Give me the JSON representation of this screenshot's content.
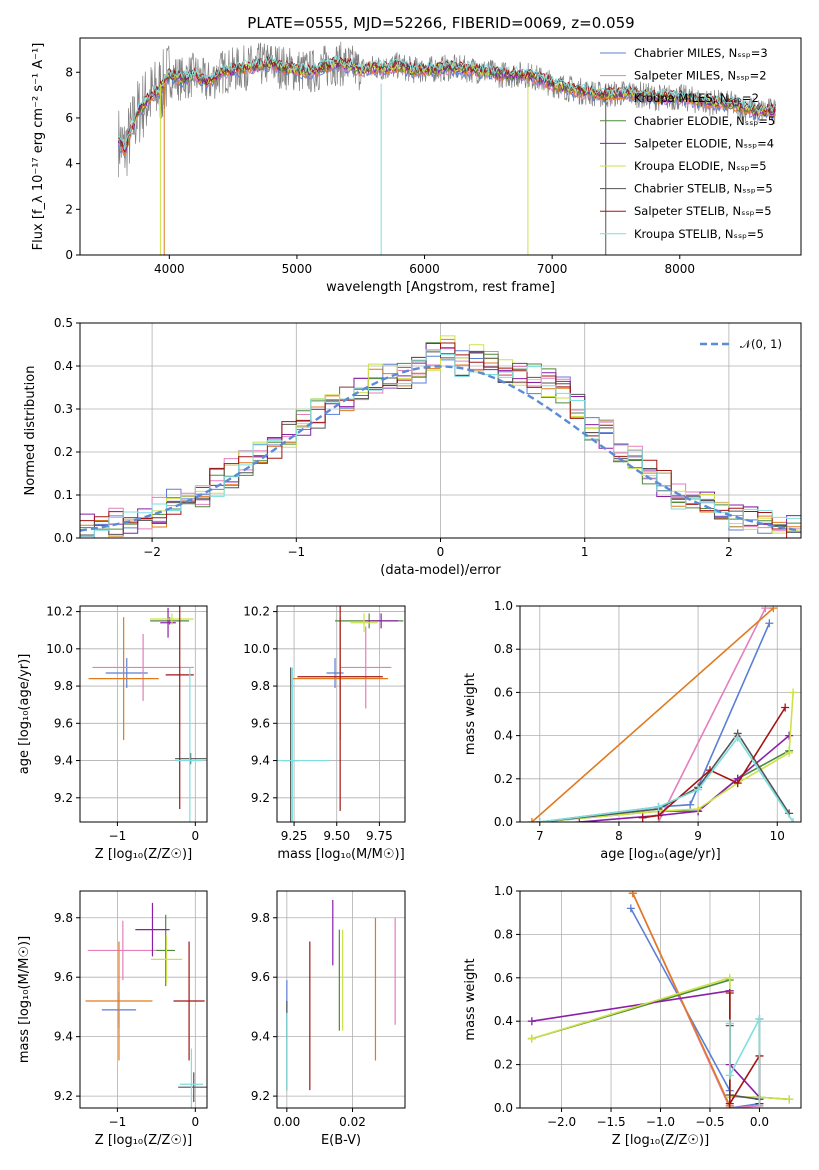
{
  "title": "PLATE=0555, MJD=52266, FIBERID=0069, z=0.059",
  "series_names": [
    "Chabrier MILES, N_SSP=3",
    "Salpeter MILES, N_SSP=2",
    "Kroupa MILES, N_SSP=2",
    "Chabrier ELODIE, N_SSP=5",
    "Salpeter ELODIE, N_SSP=4",
    "Kroupa ELODIE, N_SSP=5",
    "Chabrier STELIB, N_SSP=5",
    "Salpeter STELIB, N_SSP=5",
    "Kroupa STELIB, N_SSP=5"
  ],
  "colors": [
    "#5b7fd6",
    "#e37fbd",
    "#e07a1f",
    "#4f8a3c",
    "#8b1fa8",
    "#cde24a",
    "#555555",
    "#a31515",
    "#7fdede"
  ],
  "chart_data": [
    {
      "type": "line",
      "id": "spectrum",
      "xlabel": "wavelength [Angstrom, rest frame]",
      "ylabel": "Flux [f_λ 10⁻¹⁷ erg cm⁻² s⁻¹ A⁻¹]",
      "xlim": [
        3300,
        8950
      ],
      "ylim": [
        0,
        9.5
      ],
      "xticks": [
        4000,
        5000,
        6000,
        7000,
        8000
      ],
      "yticks": [
        0,
        2,
        4,
        6,
        8
      ],
      "legend_position": "top-right",
      "grid": false,
      "data_points": {
        "x": [
          3600,
          3650,
          3700,
          3750,
          3800,
          3850,
          3900,
          3950,
          4000,
          4100,
          4200,
          4300,
          4400,
          4500,
          4600,
          4700,
          4800,
          4900,
          5000,
          5100,
          5200,
          5300,
          5400,
          5500,
          5600,
          5700,
          5800,
          5900,
          6000,
          6200,
          6400,
          6600,
          6800,
          7000,
          7200,
          7400,
          7600,
          7800,
          8000,
          8200,
          8400,
          8600
        ],
        "y": [
          5.0,
          4.6,
          5.4,
          6.2,
          6.6,
          6.9,
          7.1,
          7.4,
          7.9,
          7.7,
          7.9,
          7.5,
          8.0,
          8.1,
          8.2,
          8.3,
          8.4,
          8.2,
          8.1,
          8.0,
          8.2,
          8.4,
          8.3,
          8.1,
          8.2,
          8.2,
          8.3,
          8.1,
          8.1,
          8.2,
          8.1,
          7.9,
          7.9,
          7.5,
          7.2,
          7.0,
          7.1,
          6.9,
          6.9,
          6.7,
          6.6,
          6.3
        ]
      }
    },
    {
      "type": "line",
      "id": "residuals",
      "xlabel": "(data-model)/error",
      "ylabel": "Normed distribution",
      "xlim": [
        -2.5,
        2.5
      ],
      "ylim": [
        0,
        0.5
      ],
      "xticks": [
        -2,
        -1,
        0,
        1,
        2
      ],
      "yticks": [
        0.0,
        0.1,
        0.2,
        0.3,
        0.4,
        0.5
      ],
      "xtick_labels": [
        "−2",
        "−1",
        "0",
        "1",
        "2"
      ],
      "ytick_labels": [
        "0.0",
        "0.1",
        "0.2",
        "0.3",
        "0.4",
        "0.5"
      ],
      "legend_label": "𝒩(0, 1)",
      "legend_position": "top-right",
      "grid": true,
      "bins": [
        -2.5,
        -2.4,
        -2.3,
        -2.2,
        -2.1,
        -2.0,
        -1.9,
        -1.8,
        -1.7,
        -1.6,
        -1.5,
        -1.4,
        -1.3,
        -1.2,
        -1.1,
        -1.0,
        -0.9,
        -0.8,
        -0.7,
        -0.6,
        -0.5,
        -0.4,
        -0.3,
        -0.2,
        -0.1,
        0.0,
        0.1,
        0.2,
        0.3,
        0.4,
        0.5,
        0.6,
        0.7,
        0.8,
        0.9,
        1.0,
        1.1,
        1.2,
        1.3,
        1.4,
        1.5,
        1.6,
        1.7,
        1.8,
        1.9,
        2.0,
        2.1,
        2.2,
        2.3,
        2.4
      ],
      "base_hist": [
        0.025,
        0.03,
        0.035,
        0.04,
        0.05,
        0.06,
        0.08,
        0.09,
        0.1,
        0.13,
        0.15,
        0.18,
        0.19,
        0.22,
        0.24,
        0.27,
        0.29,
        0.3,
        0.33,
        0.35,
        0.37,
        0.38,
        0.38,
        0.39,
        0.42,
        0.44,
        0.41,
        0.42,
        0.4,
        0.39,
        0.38,
        0.37,
        0.36,
        0.34,
        0.3,
        0.26,
        0.24,
        0.2,
        0.18,
        0.15,
        0.13,
        0.1,
        0.09,
        0.08,
        0.06,
        0.05,
        0.04,
        0.035,
        0.03,
        0.025
      ]
    },
    {
      "type": "scatter",
      "id": "age-vs-Z",
      "xlabel": "Z [log₁₀(Z/Z☉)]",
      "ylabel": "age [log₁₀(age/yr)]",
      "xlim": [
        -1.48,
        0.15
      ],
      "ylim": [
        9.07,
        10.23
      ],
      "xticks": [
        -1,
        0
      ],
      "yticks": [
        9.2,
        9.4,
        9.6,
        9.8,
        10.0,
        10.2
      ],
      "xtick_labels": [
        "−1",
        "0"
      ],
      "ytick_labels": [
        "9.2",
        "9.4",
        "9.6",
        "9.8",
        "10.0",
        "10.2"
      ],
      "points": [
        {
          "x": -0.88,
          "y": 9.87,
          "xerr": 0.27,
          "yerr": 0.08
        },
        {
          "x": -0.67,
          "y": 9.9,
          "xerr": 0.65,
          "yerr": 0.18
        },
        {
          "x": -0.92,
          "y": 9.84,
          "xerr": 0.45,
          "yerr": 0.33
        },
        {
          "x": -0.33,
          "y": 10.15,
          "xerr": 0.25,
          "yerr": 0.02
        },
        {
          "x": -0.35,
          "y": 10.14,
          "xerr": 0.1,
          "yerr": 0.08
        },
        {
          "x": -0.3,
          "y": 10.16,
          "xerr": 0.28,
          "yerr": 0.03
        },
        {
          "x": -0.06,
          "y": 9.41,
          "xerr": 0.2,
          "yerr": 0.03
        },
        {
          "x": -0.2,
          "y": 9.86,
          "xerr": 0.18,
          "yerr": 0.72
        },
        {
          "x": -0.07,
          "y": 9.4,
          "xerr": 0.18,
          "yerr": 0.5
        }
      ]
    },
    {
      "type": "scatter",
      "id": "age-vs-mass",
      "xlabel": "mass [log₁₀(M/M☉)]",
      "ylabel": "",
      "xlim": [
        9.15,
        9.9
      ],
      "ylim": [
        9.07,
        10.23
      ],
      "xticks": [
        9.25,
        9.5,
        9.75
      ],
      "yticks": [
        9.2,
        9.4,
        9.6,
        9.8,
        10.0,
        10.2
      ],
      "xtick_labels": [
        "9.25",
        "9.50",
        "9.75"
      ],
      "ytick_labels": [
        "9.2",
        "9.4",
        "9.6",
        "9.8",
        "10.0",
        "10.2"
      ],
      "points": [
        {
          "x": 9.49,
          "y": 9.87,
          "xerr": 0.05,
          "yerr": 0.08
        },
        {
          "x": 9.67,
          "y": 9.9,
          "xerr": 0.15,
          "yerr": 0.22
        },
        {
          "x": 9.52,
          "y": 9.84,
          "xerr": 0.28,
          "yerr": 0.33
        },
        {
          "x": 9.69,
          "y": 10.15,
          "xerr": 0.2,
          "yerr": 0.04
        },
        {
          "x": 9.76,
          "y": 10.15,
          "xerr": 0.1,
          "yerr": 0.04
        },
        {
          "x": 9.66,
          "y": 10.14,
          "xerr": 0.08,
          "yerr": 0.05
        },
        {
          "x": 9.23,
          "y": 9.4,
          "xerr": 0.05,
          "yerr": 0.5
        },
        {
          "x": 9.52,
          "y": 9.85,
          "xerr": 0.25,
          "yerr": 0.72
        },
        {
          "x": 9.24,
          "y": 9.4,
          "xerr": 0.22,
          "yerr": 0.5
        }
      ]
    },
    {
      "type": "line",
      "id": "massweight-vs-age",
      "xlabel": "age [log₁₀(age/yr)]",
      "ylabel": "mass weight",
      "xlim": [
        6.75,
        10.3
      ],
      "ylim": [
        0,
        1.0
      ],
      "xticks": [
        7,
        8,
        9,
        10
      ],
      "yticks": [
        0.0,
        0.2,
        0.4,
        0.6,
        0.8,
        1.0
      ],
      "xtick_labels": [
        "7",
        "8",
        "9",
        "10"
      ],
      "ytick_labels": [
        "0.0",
        "0.2",
        "0.4",
        "0.6",
        "0.8",
        "1.0"
      ],
      "grid": true,
      "series": [
        {
          "x": [
            7.0,
            8.5,
            8.9,
            9.9
          ],
          "y": [
            0.0,
            0.07,
            0.08,
            0.92
          ]
        },
        {
          "x": [
            8.5,
            9.85
          ],
          "y": [
            0.0,
            0.99
          ]
        },
        {
          "x": [
            6.9,
            9.95
          ],
          "y": [
            0.0,
            0.99
          ]
        },
        {
          "x": [
            7.0,
            8.5,
            9.0,
            9.5,
            10.15
          ],
          "y": [
            0.0,
            0.05,
            0.05,
            0.2,
            0.33
          ]
        },
        {
          "x": [
            7.5,
            8.5,
            9.0,
            9.5,
            10.15
          ],
          "y": [
            0.0,
            0.03,
            0.05,
            0.2,
            0.4
          ]
        },
        {
          "x": [
            7.0,
            8.5,
            9.0,
            9.5,
            10.15,
            10.2
          ],
          "y": [
            0.0,
            0.05,
            0.06,
            0.18,
            0.32,
            0.6
          ]
        },
        {
          "x": [
            7.0,
            8.5,
            9.0,
            9.5,
            10.15
          ],
          "y": [
            0.0,
            0.06,
            0.16,
            0.41,
            0.04
          ]
        },
        {
          "x": [
            8.3,
            8.5,
            9.15,
            9.5,
            10.1
          ],
          "y": [
            0.02,
            0.03,
            0.24,
            0.18,
            0.53
          ]
        },
        {
          "x": [
            7.0,
            8.5,
            9.0,
            9.5,
            10.2
          ],
          "y": [
            0.0,
            0.07,
            0.15,
            0.39,
            0.0
          ]
        }
      ]
    },
    {
      "type": "scatter",
      "id": "mass-vs-Z",
      "xlabel": "Z [log₁₀(Z/Z☉)]",
      "ylabel": "mass [log₁₀(M/M☉)]",
      "xlim": [
        -1.48,
        0.15
      ],
      "ylim": [
        9.16,
        9.89
      ],
      "xticks": [
        -1,
        0
      ],
      "yticks": [
        9.2,
        9.4,
        9.6,
        9.8
      ],
      "xtick_labels": [
        "−1",
        "0"
      ],
      "ytick_labels": [
        "9.2",
        "9.4",
        "9.6",
        "9.8"
      ],
      "points": [
        {
          "x": -0.98,
          "y": 9.49,
          "xerr": 0.22,
          "yerr": 0.06
        },
        {
          "x": -0.93,
          "y": 9.69,
          "xerr": 0.45,
          "yerr": 0.1
        },
        {
          "x": -0.98,
          "y": 9.52,
          "xerr": 0.43,
          "yerr": 0.2
        },
        {
          "x": -0.38,
          "y": 9.69,
          "xerr": 0.12,
          "yerr": 0.12
        },
        {
          "x": -0.55,
          "y": 9.76,
          "xerr": 0.22,
          "yerr": 0.09
        },
        {
          "x": -0.37,
          "y": 9.66,
          "xerr": 0.2,
          "yerr": 0.08
        },
        {
          "x": -0.02,
          "y": 9.23,
          "xerr": 0.2,
          "yerr": 0.05
        },
        {
          "x": -0.08,
          "y": 9.52,
          "xerr": 0.2,
          "yerr": 0.2
        },
        {
          "x": -0.05,
          "y": 9.24,
          "xerr": 0.15,
          "yerr": 0.12
        }
      ]
    },
    {
      "type": "scatter",
      "id": "mass-vs-EBV",
      "xlabel": "E(B-V)",
      "ylabel": "",
      "xlim": [
        -0.003,
        0.036
      ],
      "ylim": [
        9.16,
        9.89
      ],
      "xticks": [
        0.0,
        0.02
      ],
      "yticks": [
        9.2,
        9.4,
        9.6,
        9.8
      ],
      "xtick_labels": [
        "0.00",
        "0.02"
      ],
      "ytick_labels": [
        "9.2",
        "9.4",
        "9.6",
        "9.8"
      ],
      "points": [
        {
          "x": 0.0,
          "y": 9.49,
          "xerr": 0,
          "yerr": 0.1
        },
        {
          "x": 0.033,
          "y": 9.62,
          "xerr": 0,
          "yerr": 0.18
        },
        {
          "x": 0.027,
          "y": 9.56,
          "xerr": 0,
          "yerr": 0.24
        },
        {
          "x": 0.016,
          "y": 9.59,
          "xerr": 0,
          "yerr": 0.17
        },
        {
          "x": 0.014,
          "y": 9.75,
          "xerr": 0,
          "yerr": 0.11
        },
        {
          "x": 0.017,
          "y": 9.59,
          "xerr": 0,
          "yerr": 0.17
        },
        {
          "x": 0.0,
          "y": 9.37,
          "xerr": 0,
          "yerr": 0.15
        },
        {
          "x": 0.007,
          "y": 9.47,
          "xerr": 0,
          "yerr": 0.25
        },
        {
          "x": 0.0,
          "y": 9.35,
          "xerr": 0,
          "yerr": 0.13
        }
      ]
    },
    {
      "type": "line",
      "id": "massweight-vs-Z",
      "xlabel": "Z [log₁₀(Z/Z☉)]",
      "ylabel": "mass weight",
      "xlim": [
        -2.42,
        0.42
      ],
      "ylim": [
        0,
        1.0
      ],
      "xticks": [
        -2.0,
        -1.5,
        -1.0,
        -0.5,
        0.0
      ],
      "yticks": [
        0.0,
        0.2,
        0.4,
        0.6,
        0.8,
        1.0
      ],
      "xtick_labels": [
        "−2.0",
        "−1.5",
        "−1.0",
        "−0.5",
        "0.0"
      ],
      "ytick_labels": [
        "0.0",
        "0.2",
        "0.4",
        "0.6",
        "0.8",
        "1.0"
      ],
      "grid": true,
      "series": [
        {
          "x": [
            -1.3,
            -0.3,
            -0.3,
            0.0
          ],
          "y": [
            0.92,
            0.08,
            0.0,
            0.02
          ]
        },
        {
          "x": [
            -1.28,
            -0.3,
            0.0
          ],
          "y": [
            0.99,
            0.0,
            0.01
          ]
        },
        {
          "x": [
            -1.28,
            -0.3
          ],
          "y": [
            0.99,
            0.01
          ]
        },
        {
          "x": [
            -2.3,
            -0.3,
            -0.3,
            0.0,
            0.3
          ],
          "y": [
            0.32,
            0.59,
            0.05,
            0.05,
            0.04
          ]
        },
        {
          "x": [
            -2.3,
            -0.3,
            -0.3,
            0.0
          ],
          "y": [
            0.4,
            0.54,
            0.2,
            0.05
          ]
        },
        {
          "x": [
            -2.3,
            -0.3,
            -0.3,
            0.0,
            0.3
          ],
          "y": [
            0.32,
            0.6,
            0.05,
            0.05,
            0.04
          ]
        },
        {
          "x": [
            -0.3,
            -0.3,
            0.0,
            0.0
          ],
          "y": [
            0.38,
            0.06,
            0.04,
            0.41
          ]
        },
        {
          "x": [
            -0.3,
            -0.3,
            0.0,
            0.0
          ],
          "y": [
            0.53,
            0.02,
            0.24,
            0.02
          ]
        },
        {
          "x": [
            -0.3,
            -0.3,
            0.0,
            0.0
          ],
          "y": [
            0.39,
            0.15,
            0.41,
            0.0
          ]
        }
      ]
    }
  ]
}
